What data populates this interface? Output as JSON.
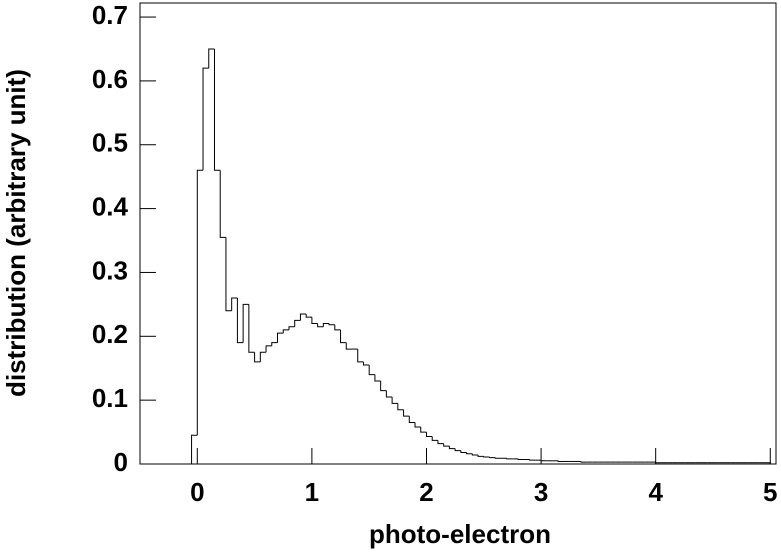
{
  "chart_data": {
    "type": "histogram",
    "x_label": "photo-electron",
    "y_label": "distribution (arbitrary unit)",
    "color": "#000000",
    "xlim": [
      -0.5,
      5.05
    ],
    "ylim": [
      0,
      0.722
    ],
    "xticks": [
      0,
      1,
      2,
      3,
      4,
      5
    ],
    "yticks": [
      0,
      0.1,
      0.2,
      0.3,
      0.4,
      0.5,
      0.6,
      0.7
    ],
    "bins": [
      -0.5,
      -0.45,
      -0.4,
      -0.35,
      -0.3,
      -0.25,
      -0.2,
      -0.15,
      -0.1,
      -0.05,
      0,
      0.05,
      0.1,
      0.15,
      0.2,
      0.25,
      0.3,
      0.35,
      0.4,
      0.45,
      0.5,
      0.55,
      0.6,
      0.65,
      0.7,
      0.75,
      0.8,
      0.85,
      0.9,
      0.95,
      1,
      1.05,
      1.1,
      1.15,
      1.2,
      1.25,
      1.3,
      1.35,
      1.4,
      1.45,
      1.5,
      1.55,
      1.6,
      1.65,
      1.7,
      1.75,
      1.8,
      1.85,
      1.9,
      1.95,
      2,
      2.05,
      2.1,
      2.15,
      2.2,
      2.25,
      2.3,
      2.35,
      2.4,
      2.45,
      2.5,
      2.55,
      2.6,
      2.65,
      2.7,
      2.75,
      2.8,
      2.85,
      2.9,
      2.95,
      3,
      3.05,
      3.1,
      3.15,
      3.2,
      3.25,
      3.3,
      3.35,
      3.4,
      3.45,
      3.5,
      3.55,
      3.6,
      3.65,
      3.7,
      3.75,
      3.8,
      3.85,
      3.9,
      3.95,
      4,
      4.05,
      4.1,
      4.15,
      4.2,
      4.25,
      4.3,
      4.35,
      4.4,
      4.45,
      4.5,
      4.55,
      4.6,
      4.65,
      4.7,
      4.75,
      4.8,
      4.85,
      4.9,
      4.95,
      5
    ],
    "values": [
      0,
      0,
      0,
      0,
      0,
      0,
      0,
      0,
      0,
      0.045,
      0.46,
      0.62,
      0.65,
      0.46,
      0.355,
      0.24,
      0.26,
      0.19,
      0.25,
      0.175,
      0.16,
      0.175,
      0.185,
      0.19,
      0.205,
      0.21,
      0.215,
      0.225,
      0.235,
      0.23,
      0.22,
      0.215,
      0.22,
      0.218,
      0.21,
      0.19,
      0.18,
      0.18,
      0.16,
      0.155,
      0.14,
      0.13,
      0.115,
      0.105,
      0.095,
      0.085,
      0.075,
      0.065,
      0.058,
      0.05,
      0.043,
      0.037,
      0.032,
      0.028,
      0.024,
      0.021,
      0.018,
      0.016,
      0.014,
      0.012,
      0.011,
      0.01,
      0.009,
      0.009,
      0.008,
      0.008,
      0.007,
      0.007,
      0.006,
      0.006,
      0.005,
      0.005,
      0.005,
      0.004,
      0.004,
      0.004,
      0.004,
      0.003,
      0.003,
      0.003,
      0.003,
      0.003,
      0.003,
      0.003,
      0.003,
      0.003,
      0.003,
      0.003,
      0.003,
      0.003,
      0.002,
      0.002,
      0.002,
      0.002,
      0.002,
      0.002,
      0.002,
      0.002,
      0.002,
      0.002,
      0.002,
      0.002,
      0.002,
      0.002,
      0.002,
      0.002,
      0.002,
      0.002,
      0.002,
      0.002
    ]
  }
}
